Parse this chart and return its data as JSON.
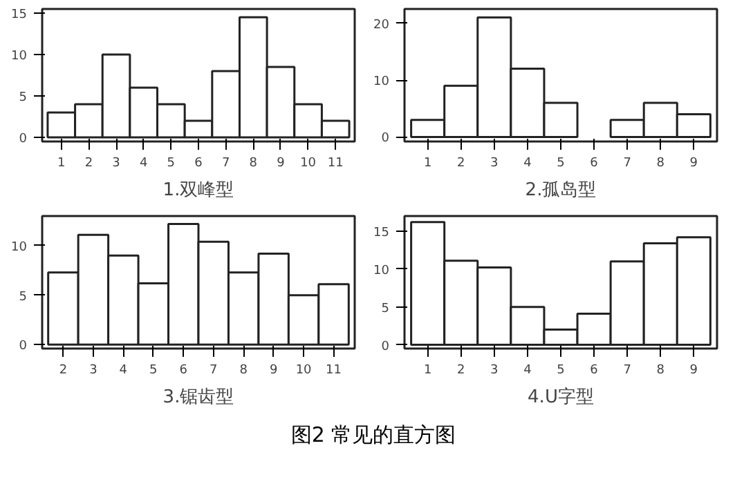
{
  "chart_data": [
    {
      "type": "bar",
      "title": "1.双峰型",
      "categories": [
        "1",
        "2",
        "3",
        "4",
        "5",
        "6",
        "7",
        "8",
        "9",
        "10",
        "11"
      ],
      "values": [
        3,
        4,
        10,
        6,
        4,
        2,
        8,
        14.5,
        8.5,
        4,
        2
      ],
      "color": "#ffffff",
      "ylim": [
        -0.5,
        15.5
      ],
      "yticks": [
        0,
        5,
        10,
        15
      ],
      "grid": false
    },
    {
      "type": "bar",
      "title": "2.孤岛型",
      "categories": [
        "1",
        "2",
        "3",
        "4",
        "5",
        "6",
        "7",
        "8",
        "9"
      ],
      "values": [
        3,
        9,
        21,
        12,
        6,
        null,
        3,
        6,
        4
      ],
      "color": "#ffffff",
      "ylim": [
        -0.8,
        22.5
      ],
      "yticks": [
        0,
        10,
        20
      ],
      "grid": false
    },
    {
      "type": "bar",
      "title": "3.锯齿型",
      "categories": [
        "2",
        "3",
        "4",
        "5",
        "6",
        "7",
        "8",
        "9",
        "10",
        "11"
      ],
      "values": [
        7.3,
        11.1,
        9,
        6.2,
        12.2,
        10.4,
        7.3,
        9.2,
        5,
        6.1
      ],
      "color": "#ffffff",
      "ylim": [
        -0.4,
        13
      ],
      "yticks": [
        0,
        5,
        10
      ],
      "grid": false
    },
    {
      "type": "bar",
      "title": "4.U字型",
      "categories": [
        "1",
        "2",
        "3",
        "4",
        "5",
        "6",
        "7",
        "8",
        "9"
      ],
      "values": [
        16.2,
        11.1,
        10.2,
        5,
        2,
        4.1,
        11,
        13.4,
        14.2
      ],
      "color": "#ffffff",
      "ylim": [
        -0.5,
        17
      ],
      "yticks": [
        0,
        5,
        10,
        15
      ],
      "grid": false
    },
    {
      "type": "other",
      "title": "图2 常见的直方图"
    }
  ]
}
